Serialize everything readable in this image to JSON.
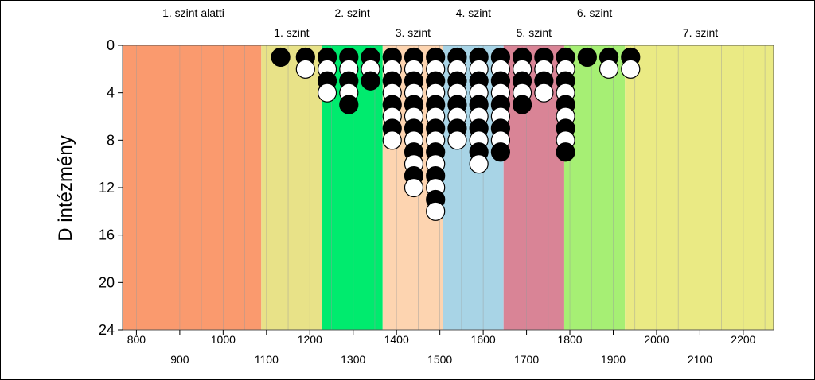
{
  "chart_data": {
    "type": "scatter",
    "title": "",
    "xlabel": "",
    "ylabel": "D intézmény",
    "xlim": [
      768,
      2270
    ],
    "ylim": [
      24,
      0
    ],
    "y_ticks": [
      "0",
      "4",
      "8",
      "12",
      "16",
      "20",
      "24"
    ],
    "x_ticks_top_row": [
      "800",
      "1000",
      "1200",
      "1400",
      "1600",
      "1800",
      "2000",
      "2200"
    ],
    "x_ticks_bottom_row": [
      "900",
      "1100",
      "1300",
      "1500",
      "1700",
      "1900",
      "2100"
    ],
    "x_tick_values": [
      800,
      900,
      1000,
      1100,
      1200,
      1300,
      1400,
      1500,
      1600,
      1700,
      1800,
      1900,
      2000,
      2100,
      2200
    ],
    "grid": "vertical",
    "bands": [
      {
        "label": "1. szint alatti",
        "from": 768,
        "to": 1088,
        "color": "#FA9A6E"
      },
      {
        "label": "1. szint",
        "from": 1088,
        "to": 1228,
        "color": "#E8E288"
      },
      {
        "label": "2. szint",
        "from": 1228,
        "to": 1368,
        "color": "#00EB6E"
      },
      {
        "label": "3. szint",
        "from": 1368,
        "to": 1508,
        "color": "#FDD4B0"
      },
      {
        "label": "4. szint",
        "from": 1508,
        "to": 1647,
        "color": "#A8D4E6"
      },
      {
        "label": "5. szint",
        "from": 1647,
        "to": 1787,
        "color": "#D98496"
      },
      {
        "label": "6. szint",
        "from": 1787,
        "to": 1927,
        "color": "#A6EF74"
      },
      {
        "label": "7. szint",
        "from": 1927,
        "to": 2270,
        "color": "#EAEA84"
      }
    ],
    "band_label_rows": {
      "upper": [
        "1. szint alatti",
        "2. szint",
        "4. szint",
        "6. szint"
      ],
      "lower": [
        "1. szint",
        "3. szint",
        "5. szint",
        "7. szint"
      ]
    },
    "columns": [
      {
        "x": 1140,
        "markers": [
          "black"
        ]
      },
      {
        "x": 1190,
        "markers": [
          "black",
          "white"
        ]
      },
      {
        "x": 1240,
        "markers": [
          "black",
          "white",
          "black",
          "white"
        ]
      },
      {
        "x": 1290,
        "markers": [
          "black",
          "white",
          "black",
          "white",
          "black"
        ]
      },
      {
        "x": 1340,
        "markers": [
          "black",
          "white",
          "black"
        ]
      },
      {
        "x": 1390,
        "markers": [
          "black",
          "white",
          "black",
          "white",
          "black",
          "white",
          "black",
          "white"
        ]
      },
      {
        "x": 1440,
        "markers": [
          "black",
          "white",
          "black",
          "white",
          "black",
          "white",
          "black",
          "white",
          "black",
          "white",
          "black",
          "white"
        ]
      },
      {
        "x": 1490,
        "markers": [
          "black",
          "white",
          "black",
          "white",
          "black",
          "white",
          "black",
          "white",
          "black",
          "white",
          "black",
          "white",
          "black",
          "white"
        ]
      },
      {
        "x": 1540,
        "markers": [
          "black",
          "white",
          "black",
          "white",
          "black",
          "white",
          "black",
          "white"
        ]
      },
      {
        "x": 1590,
        "markers": [
          "black",
          "white",
          "black",
          "white",
          "black",
          "white",
          "black",
          "white",
          "black",
          "white"
        ]
      },
      {
        "x": 1640,
        "markers": [
          "black",
          "white",
          "black",
          "white",
          "black",
          "white",
          "black",
          "white",
          "black"
        ]
      },
      {
        "x": 1690,
        "markers": [
          "black",
          "white",
          "black",
          "white",
          "black"
        ]
      },
      {
        "x": 1740,
        "markers": [
          "black",
          "white",
          "black",
          "white"
        ]
      },
      {
        "x": 1790,
        "markers": [
          "black",
          "white",
          "black",
          "white",
          "black",
          "white",
          "black",
          "white",
          "black"
        ]
      },
      {
        "x": 1840,
        "markers": [
          "black"
        ]
      },
      {
        "x": 1890,
        "markers": [
          "black",
          "white"
        ]
      },
      {
        "x": 1940,
        "markers": [
          "black",
          "white"
        ]
      }
    ],
    "colors": {
      "marker_fill_dark": "#000000",
      "marker_fill_light": "#ffffff",
      "grid": "#9a9a9a"
    }
  }
}
